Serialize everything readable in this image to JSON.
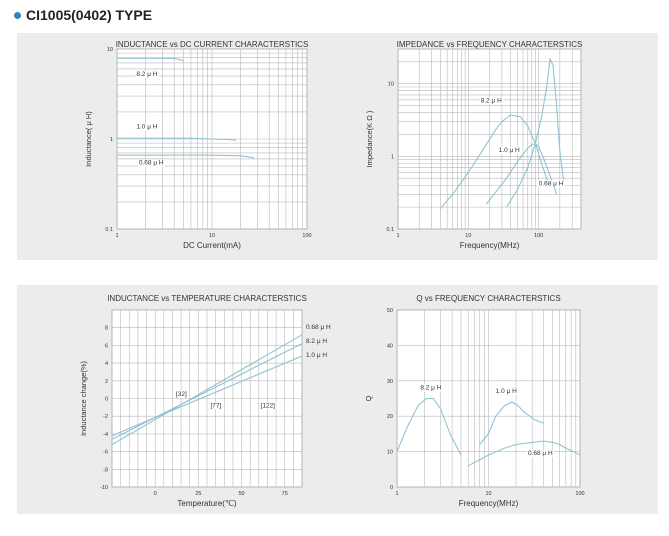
{
  "header": {
    "title": "CI1005(0402) TYPE"
  },
  "colors": {
    "panel_bg": "#ececec",
    "plot_bg": "#ffffff",
    "grid": "#b9b9b9",
    "curve": "#8fc3d3",
    "bullet": "#2f86b9"
  },
  "chart_data": [
    {
      "id": "inductance-vs-dc-current",
      "type": "line",
      "title": "INDUCTANCE vs DC CURRENT CHARACTERSTICS",
      "xlabel": "DC Current(mA)",
      "ylabel": "Inductance( μ H)",
      "xscale": "log",
      "yscale": "log",
      "xlim": [
        1,
        100
      ],
      "ylim": [
        0.1,
        10
      ],
      "xticks": [
        1,
        10,
        100
      ],
      "xtick_labels": [
        "1",
        "10",
        "100"
      ],
      "yticks": [
        0.1,
        1,
        10
      ],
      "ytick_labels": [
        "0.1",
        "1",
        "10"
      ],
      "grid": true,
      "series": [
        {
          "name": "8.2 μ H",
          "x": [
            1,
            2,
            3,
            4,
            4.6,
            5
          ],
          "y": [
            7.9,
            7.9,
            7.9,
            7.85,
            7.6,
            7.4
          ]
        },
        {
          "name": "1.0 μ H",
          "x": [
            1,
            3,
            6,
            10,
            14,
            16,
            18
          ],
          "y": [
            1.02,
            1.02,
            1.02,
            1.0,
            0.99,
            0.98,
            0.97
          ]
        },
        {
          "name": "0.68 μ H",
          "x": [
            1,
            5,
            10,
            20,
            25,
            28
          ],
          "y": [
            0.66,
            0.66,
            0.66,
            0.65,
            0.63,
            0.61
          ]
        }
      ],
      "annotations": [
        {
          "text": "8.2 μ H",
          "x": 1.6,
          "y": 5.0
        },
        {
          "text": "1.0 μ H",
          "x": 1.6,
          "y": 1.3
        },
        {
          "text": "0.68 μ H",
          "x": 1.7,
          "y": 0.52
        }
      ]
    },
    {
      "id": "impedance-vs-frequency",
      "type": "line",
      "title": "IMPEDANCE vs FREQUENCY CHARACTERSTICS",
      "xlabel": "Frequency(MHz)",
      "ylabel": "Impedance(K Ω )",
      "xscale": "log",
      "yscale": "log",
      "xlim": [
        1,
        400
      ],
      "ylim": [
        0.1,
        30
      ],
      "xticks": [
        1,
        10,
        100
      ],
      "xtick_labels": [
        "1",
        "10",
        "100"
      ],
      "yticks": [
        0.1,
        1,
        10
      ],
      "ytick_labels": [
        "0.1",
        "1",
        "10"
      ],
      "grid": true,
      "series": [
        {
          "name": "8.2 μ H",
          "x": [
            4,
            6,
            10,
            15,
            20,
            25,
            30,
            40,
            55,
            70,
            90,
            110,
            140
          ],
          "y": [
            0.19,
            0.3,
            0.6,
            1.1,
            1.7,
            2.4,
            3.0,
            3.7,
            3.5,
            2.6,
            1.5,
            0.8,
            0.4
          ]
        },
        {
          "name": "1.0 μ H",
          "x": [
            18,
            25,
            35,
            50,
            70,
            80,
            90,
            100,
            120,
            150,
            180
          ],
          "y": [
            0.22,
            0.33,
            0.5,
            0.85,
            1.3,
            1.45,
            1.5,
            1.35,
            0.9,
            0.5,
            0.3
          ]
        },
        {
          "name": "0.68 μ H",
          "x": [
            35,
            50,
            70,
            90,
            110,
            130,
            145,
            160,
            180,
            200,
            230
          ],
          "y": [
            0.2,
            0.35,
            0.7,
            1.5,
            3.5,
            9,
            22,
            18,
            5,
            1.2,
            0.4
          ]
        }
      ],
      "annotations": [
        {
          "text": "8.2 μ H",
          "x": 15,
          "y": 5.5
        },
        {
          "text": "1.0 μ H",
          "x": 27,
          "y": 1.15
        },
        {
          "text": "0.68 μ H",
          "x": 100,
          "y": 0.4
        }
      ]
    },
    {
      "id": "inductance-vs-temperature",
      "type": "line",
      "title": "INDUCTANCE vs TEMPERATURE CHARACTERSTICS",
      "xlabel": "Temperature(℃)",
      "ylabel": "Inductance change(%)",
      "xscale": "linear",
      "yscale": "linear",
      "xlim": [
        -25,
        85
      ],
      "ylim": [
        -10,
        10
      ],
      "xticks": [
        0,
        25,
        50,
        75
      ],
      "xtick_labels": [
        "0",
        "25",
        "50",
        "75"
      ],
      "yticks": [
        -10,
        -8,
        -6,
        -4,
        -2,
        0,
        2,
        4,
        6,
        8
      ],
      "ytick_labels": [
        "-10",
        "-8",
        "-6",
        "-4",
        "-2",
        "0",
        "2",
        "4",
        "6",
        "8"
      ],
      "grid": true,
      "series": [
        {
          "name": "0.68 μ H",
          "x": [
            -25,
            85
          ],
          "y": [
            -5.2,
            7.2
          ]
        },
        {
          "name": "8.2 μ H",
          "x": [
            -25,
            85
          ],
          "y": [
            -4.6,
            6.2
          ]
        },
        {
          "name": "1.0 μ H",
          "x": [
            -25,
            85
          ],
          "y": [
            -4.2,
            4.8
          ]
        }
      ],
      "legend_labels": [
        "0.68 μ H",
        "8.2 μ H",
        "1.0 μ H"
      ],
      "annotations": [
        {
          "text": "[32]",
          "x": 12,
          "y": 0.3
        },
        {
          "text": "[77]",
          "x": 32,
          "y": -1.0
        },
        {
          "text": "[122]",
          "x": 61,
          "y": -1.0
        }
      ]
    },
    {
      "id": "q-vs-frequency",
      "type": "line",
      "title": "Q vs FREQUENCY CHARACTERSTICS",
      "xlabel": "Frequency(MHz)",
      "ylabel": "Q",
      "xscale": "log",
      "yscale": "linear",
      "xlim": [
        1,
        100
      ],
      "ylim": [
        0,
        50
      ],
      "xticks": [
        1,
        10,
        100
      ],
      "xtick_labels": [
        "1",
        "10",
        "100"
      ],
      "yticks": [
        0,
        10,
        20,
        30,
        40,
        50
      ],
      "ytick_labels": [
        "0",
        "10",
        "20",
        "30",
        "40",
        "50"
      ],
      "grid": true,
      "series": [
        {
          "name": "8.2 μ H",
          "x": [
            1,
            1.3,
            1.7,
            2.1,
            2.5,
            3,
            3.8,
            5
          ],
          "y": [
            10,
            17,
            23,
            25,
            25,
            22,
            15,
            9
          ]
        },
        {
          "name": "1.0 μ H",
          "x": [
            8,
            10,
            12,
            15,
            18,
            21,
            25,
            32,
            40
          ],
          "y": [
            12,
            15,
            20,
            23,
            24,
            23,
            21,
            19,
            18
          ]
        },
        {
          "name": "0.68 μ H",
          "x": [
            6,
            10,
            15,
            20,
            30,
            40,
            50,
            60,
            70,
            85,
            100
          ],
          "y": [
            6,
            9,
            11,
            12,
            12.6,
            13,
            12.6,
            12,
            11,
            10,
            9
          ]
        }
      ],
      "annotations": [
        {
          "text": "8.2 μ H",
          "x": 1.8,
          "y": 27.5
        },
        {
          "text": "1.0 μ H",
          "x": 12,
          "y": 26.5
        },
        {
          "text": "0.68 μ H",
          "x": 27,
          "y": 9
        }
      ]
    }
  ]
}
